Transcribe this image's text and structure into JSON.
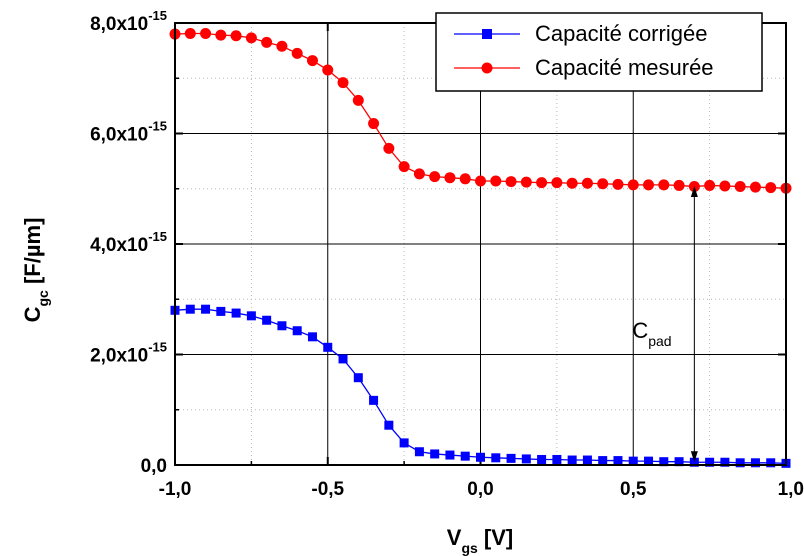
{
  "chart_data": {
    "type": "line",
    "xlabel": {
      "main": "V",
      "sub": "gs",
      "unit": " [V]"
    },
    "ylabel": {
      "main": "C",
      "sub": "gc",
      "unit": " [F/µm]"
    },
    "xlim": [
      -1.0,
      1.0
    ],
    "ylim": [
      0,
      8e-15
    ],
    "x_ticks": [
      -1.0,
      -0.5,
      0.0,
      0.5,
      1.0
    ],
    "x_tick_labels": [
      "-1,0",
      "-0,5",
      "0,0",
      "0,5",
      "1,0"
    ],
    "y_ticks": [
      0,
      2e-15,
      4e-15,
      6e-15,
      8e-15
    ],
    "y_tick_labels": [
      {
        "base": "0,0",
        "exp": ""
      },
      {
        "base": "2,0x10",
        "exp": "-15"
      },
      {
        "base": "4,0x10",
        "exp": "-15"
      },
      {
        "base": "6,0x10",
        "exp": "-15"
      },
      {
        "base": "8,0x10",
        "exp": "-15"
      }
    ],
    "grid": true,
    "legend_position": "top-right",
    "x": [
      -1.0,
      -0.95,
      -0.9,
      -0.85,
      -0.8,
      -0.75,
      -0.7,
      -0.65,
      -0.6,
      -0.55,
      -0.5,
      -0.45,
      -0.4,
      -0.35,
      -0.3,
      -0.25,
      -0.2,
      -0.15,
      -0.1,
      -0.05,
      0.0,
      0.05,
      0.1,
      0.15,
      0.2,
      0.25,
      0.3,
      0.35,
      0.4,
      0.45,
      0.5,
      0.55,
      0.6,
      0.65,
      0.7,
      0.75,
      0.8,
      0.85,
      0.9,
      0.95,
      1.0
    ],
    "series": [
      {
        "name": "Capacité  corrigée",
        "color": "#0000ff",
        "marker": "square",
        "values": [
          2.8e-15,
          2.82e-15,
          2.82e-15,
          2.78e-15,
          2.75e-15,
          2.7e-15,
          2.62e-15,
          2.52e-15,
          2.43e-15,
          2.32e-15,
          2.13e-15,
          1.92e-15,
          1.58e-15,
          1.17e-15,
          7.2e-16,
          4e-16,
          2.4e-16,
          2e-16,
          1.8e-16,
          1.6e-16,
          1.4e-16,
          1.3e-16,
          1.2e-16,
          1.1e-16,
          1e-16,
          1e-16,
          9e-17,
          9e-17,
          8e-17,
          8e-17,
          7e-17,
          7e-17,
          6e-17,
          6e-17,
          5e-17,
          5e-17,
          5e-17,
          4e-17,
          4e-17,
          4e-17,
          3e-17
        ]
      },
      {
        "name": "Capacité mesurée",
        "color": "#ff0000",
        "marker": "circle",
        "values": [
          7.8e-15,
          7.81e-15,
          7.81e-15,
          7.78e-15,
          7.77e-15,
          7.73e-15,
          7.65e-15,
          7.58e-15,
          7.45e-15,
          7.32e-15,
          7.15e-15,
          6.92e-15,
          6.6e-15,
          6.18e-15,
          5.73e-15,
          5.4e-15,
          5.27e-15,
          5.22e-15,
          5.2e-15,
          5.18e-15,
          5.14e-15,
          5.14e-15,
          5.13e-15,
          5.12e-15,
          5.11e-15,
          5.11e-15,
          5.1e-15,
          5.1e-15,
          5.09e-15,
          5.08e-15,
          5.07e-15,
          5.07e-15,
          5.07e-15,
          5.06e-15,
          5.04e-15,
          5.06e-15,
          5.05e-15,
          5.04e-15,
          5.03e-15,
          5.02e-15,
          5.01e-15
        ]
      }
    ],
    "annotations": [
      {
        "label_main": "C",
        "label_sub": "pad",
        "type": "double-arrow",
        "x": 0.7,
        "y_from": 5e-17,
        "y_to": 5.05e-15
      }
    ]
  }
}
